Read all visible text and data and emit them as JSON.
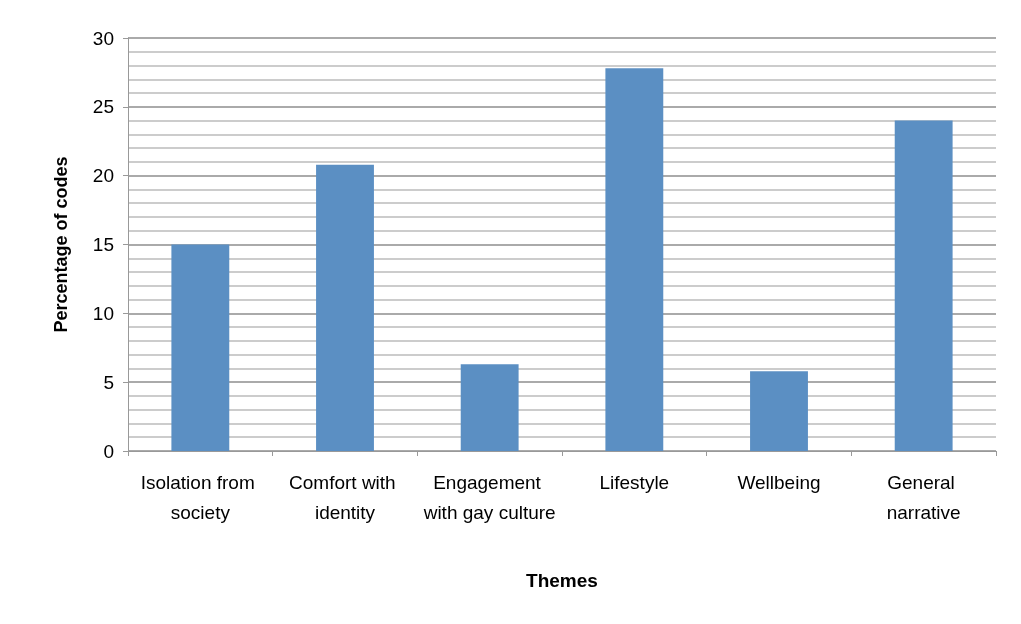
{
  "chart_data": {
    "type": "bar",
    "xlabel": "Themes",
    "ylabel": "Percentage of codes",
    "categories": [
      "Isolation from society",
      "Comfort with identity",
      "Engagement with gay culture",
      "Lifestyle",
      "Wellbeing",
      "General narrative"
    ],
    "values": [
      15,
      20.8,
      6.3,
      27.8,
      5.8,
      24
    ],
    "color": "#5b8fc3",
    "ylim": [
      0,
      30
    ],
    "yticks": [
      0,
      5,
      10,
      15,
      20,
      25,
      30
    ],
    "grid": "y"
  }
}
